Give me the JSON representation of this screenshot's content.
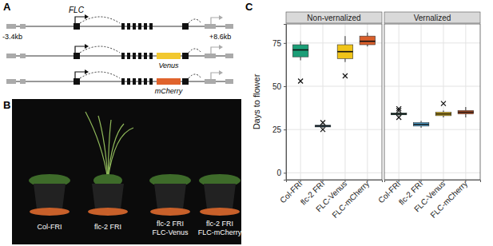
{
  "panel_labels": [
    "A",
    "B",
    "C"
  ],
  "gene_diagram": {
    "gene": "FLC",
    "left_coord": "-3.4kb",
    "right_coord": "+8.6kb",
    "tags": [
      {
        "name": "Venus",
        "color": "#f2c82f"
      },
      {
        "name": "mCherry",
        "color": "#e0632c"
      }
    ]
  },
  "photo": {
    "genotypes": [
      [
        "Col-FRI"
      ],
      [
        "flc-2 FRI"
      ],
      [
        "flc-2 FRI",
        "FLC-Venus"
      ],
      [
        "flc-2 FRI",
        "FLC-mCherry"
      ]
    ]
  },
  "chart_data": {
    "type": "box",
    "y_label": "Days to flower",
    "categories": [
      "Col-FRI",
      "flc-2 FRI",
      "FLC-Venus",
      "FLC-mCherry"
    ],
    "colors": [
      "#1b9e77",
      "#56b4e9",
      "#f0c419",
      "#d95f2b"
    ],
    "ylim": [
      -4,
      86
    ],
    "yticks": [
      0,
      25,
      50,
      75
    ],
    "grid": true,
    "series": [
      {
        "name": "Non-vernalized",
        "whisker_low": [
          65,
          26,
          64,
          73
        ],
        "q1": [
          67,
          26.5,
          66,
          74
        ],
        "median": [
          71,
          27,
          70,
          76
        ],
        "q3": [
          74,
          27.5,
          74,
          79
        ],
        "whisker_high": [
          76,
          28,
          79,
          81
        ],
        "outliers": [
          [
            53
          ],
          [
            29,
            25
          ],
          [
            56
          ],
          []
        ]
      },
      {
        "name": "Vernalized",
        "whisker_low": [
          33,
          26,
          32,
          32
        ],
        "q1": [
          33.5,
          27,
          33,
          34
        ],
        "median": [
          34,
          28,
          34,
          35
        ],
        "q3": [
          34.5,
          29,
          35,
          36
        ],
        "whisker_high": [
          35,
          30,
          36,
          38
        ],
        "outliers": [
          [
            37,
            36,
            32
          ],
          [],
          [
            40
          ],
          []
        ]
      }
    ]
  }
}
